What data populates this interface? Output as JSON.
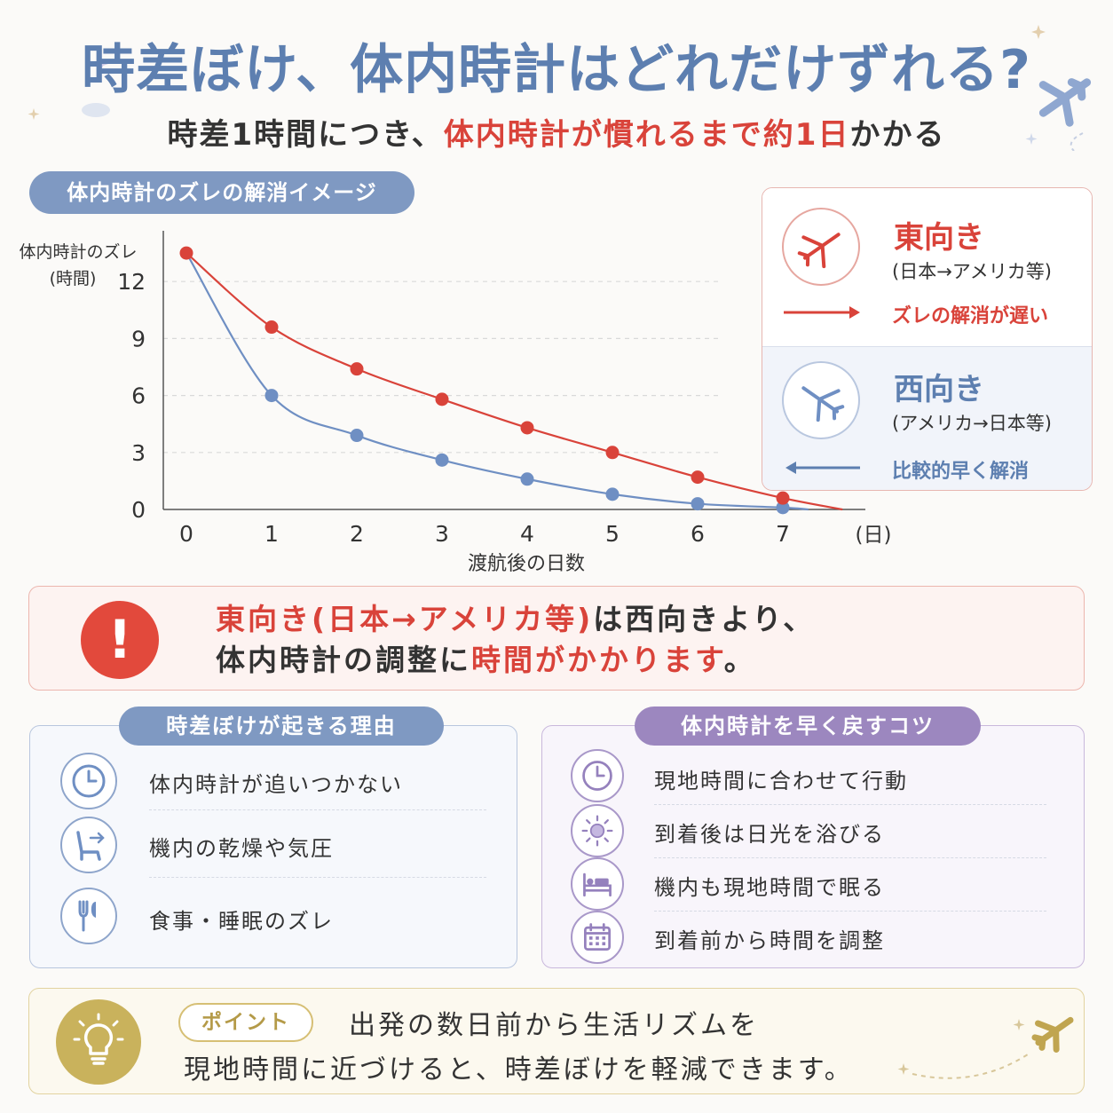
{
  "header": {
    "title": "時差ぼけ、体内時計はどれだけずれる?",
    "subtitle_pre": "時差1時間につき、",
    "subtitle_hl": "体内時計が慣れるまで約1日",
    "subtitle_post": "かかる"
  },
  "chart_section_label": "体内時計のズレの解消イメージ",
  "chart_data": {
    "type": "line",
    "ylabel_line1": "体内時計のズレ",
    "ylabel_line2": "(時間)",
    "xlabel": "渡航後の日数",
    "xunit": "(日)",
    "x": [
      0,
      1,
      2,
      3,
      4,
      5,
      6,
      7
    ],
    "yticks": [
      0,
      3,
      6,
      9,
      12
    ],
    "ylim": [
      0,
      13.5
    ],
    "xlim": [
      0,
      7.7
    ],
    "grid": true,
    "series": [
      {
        "name": "東向き",
        "color": "#d9433a",
        "values": [
          13.5,
          9.6,
          7.4,
          5.8,
          4.3,
          3.0,
          1.7,
          0.6
        ],
        "tail": [
          7.7,
          0
        ]
      },
      {
        "name": "西向き",
        "color": "#6f8fc3",
        "values": [
          13.5,
          6.0,
          3.9,
          2.6,
          1.6,
          0.8,
          0.3,
          0.1
        ],
        "tail": [
          7.3,
          0
        ]
      }
    ]
  },
  "legend": {
    "east": {
      "title": "東向き",
      "sub": "(日本→アメリカ等)",
      "note": "ズレの解消が遅い",
      "color": "#d9433a"
    },
    "west": {
      "title": "西向き",
      "sub": "(アメリカ→日本等)",
      "note": "比較的早く解消",
      "color": "#5d7fb0"
    }
  },
  "alert": {
    "icon": "!",
    "l1_hl": "東向き(日本→アメリカ等)",
    "l1_rest": "は西向きより、",
    "l2_pre": "体内時計の調整に",
    "l2_hl": "時間がかかります",
    "l2_post": "。"
  },
  "reasons": {
    "title": "時差ぼけが起きる理由",
    "items": [
      {
        "icon": "clock-icon",
        "label": "体内時計が追いつかない"
      },
      {
        "icon": "airplane-seat-icon",
        "label": "機内の乾燥や気圧"
      },
      {
        "icon": "fork-knife-icon",
        "label": "食事・睡眠のズレ"
      }
    ]
  },
  "tips": {
    "title": "体内時計を早く戻すコツ",
    "items": [
      {
        "icon": "clock-icon",
        "label": "現地時間に合わせて行動"
      },
      {
        "icon": "sun-icon",
        "label": "到着後は日光を浴びる"
      },
      {
        "icon": "bed-icon",
        "label": "機内も現地時間で眠る"
      },
      {
        "icon": "calendar-icon",
        "label": "到着前から時間を調整"
      }
    ]
  },
  "point": {
    "badge": "ポイント",
    "line1": "出発の数日前から生活リズムを",
    "line2": "現地時間に近づけると、時差ぼけを軽減できます。"
  }
}
